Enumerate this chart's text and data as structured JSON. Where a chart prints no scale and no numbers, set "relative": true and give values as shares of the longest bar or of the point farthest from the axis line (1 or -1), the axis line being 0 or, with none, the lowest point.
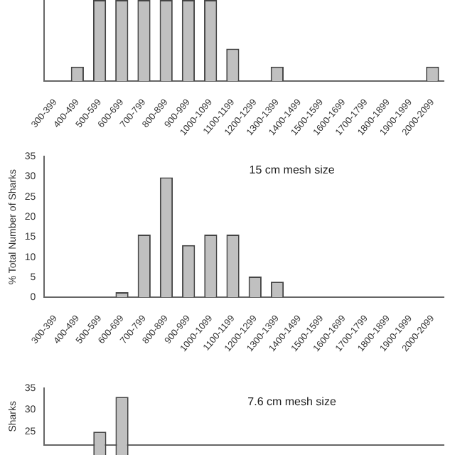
{
  "chart_data": [
    {
      "type": "bar",
      "relative": true,
      "tick_labels": "x",
      "grid": false,
      "legend": false,
      "color": "#c0c0c0",
      "categories": [
        "300-399",
        "400-499",
        "500-599",
        "600-699",
        "700-799",
        "800-899",
        "900-999",
        "1000-1099",
        "1100-1199",
        "1200-1299",
        "1300-1399",
        "1400-1499",
        "1500-1599",
        "1600-1699",
        "1700-1799",
        "1800-1899",
        "1900-1999",
        "2000-2099"
      ],
      "values": [
        0,
        0.18,
        1,
        1,
        1,
        1,
        1,
        1,
        0.4,
        0,
        0.18,
        0,
        0,
        0,
        0,
        0,
        0,
        0.18
      ]
    },
    {
      "type": "bar",
      "grid": false,
      "legend": false,
      "color": "#c0c0c0",
      "ylabel": "% Total Number of Sharks",
      "annotations": [
        "15 cm mesh size"
      ],
      "categories": [
        "300-399",
        "400-499",
        "500-599",
        "600-699",
        "700-799",
        "800-899",
        "900-999",
        "1000-1099",
        "1100-1199",
        "1200-1299",
        "1300-1399",
        "1400-1499",
        "1500-1599",
        "1600-1699",
        "1700-1799",
        "1800-1899",
        "1900-1999",
        "2000-2099"
      ],
      "values": [
        0,
        0,
        0,
        1.3,
        15.6,
        29.8,
        13,
        15.6,
        15.6,
        5.2,
        3.9,
        0,
        0,
        0,
        0,
        0,
        0,
        0
      ],
      "ylim": [
        0,
        35
      ],
      "yticks": [
        0,
        5,
        10,
        15,
        20,
        25,
        30,
        35
      ]
    },
    {
      "type": "bar",
      "tick_labels": "y",
      "grid": false,
      "legend": false,
      "color": "#c0c0c0",
      "ylabel": "Sharks",
      "annotations": [
        "7.6 cm mesh size"
      ],
      "categories": [
        null,
        null,
        null,
        null,
        null,
        null,
        null,
        null,
        null,
        null,
        null,
        null,
        null,
        null,
        null,
        null,
        null,
        null
      ],
      "values": [
        null,
        null,
        25,
        33,
        null,
        null,
        null,
        null,
        null,
        null,
        null,
        null,
        null,
        null,
        null,
        null,
        null,
        null
      ],
      "ylim": [
        22,
        35
      ],
      "yticks": [
        25,
        30,
        35
      ]
    }
  ]
}
